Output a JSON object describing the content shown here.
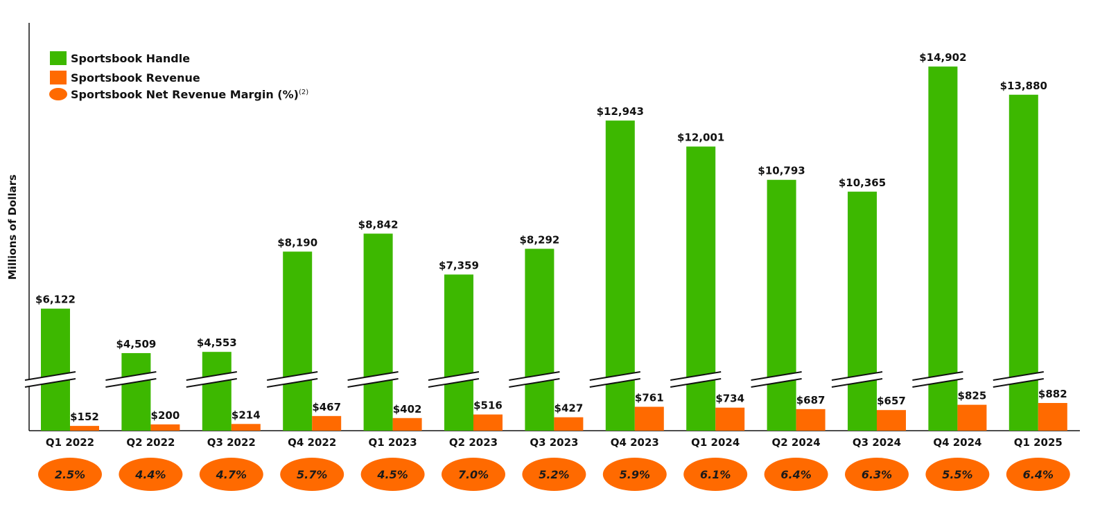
{
  "chart_data": {
    "type": "bar",
    "ylabel": "Millions of Dollars",
    "axis_break": true,
    "grid": false,
    "legend_position": "top-left",
    "categories": [
      "Q1 2022",
      "Q2 2022",
      "Q3 2022",
      "Q4 2022",
      "Q1 2023",
      "Q2 2023",
      "Q3 2023",
      "Q4 2023",
      "Q1 2024",
      "Q2 2024",
      "Q3 2024",
      "Q4 2024",
      "Q1 2025"
    ],
    "series": [
      {
        "name": "Sportsbook Handle",
        "color": "#3db800",
        "values": [
          6122,
          4509,
          4553,
          8190,
          8842,
          7359,
          8292,
          12943,
          12001,
          10793,
          10365,
          14902,
          13880
        ],
        "labels": [
          "$6,122",
          "$4,509",
          "$4,553",
          "$8,190",
          "$8,842",
          "$7,359",
          "$8,292",
          "$12,943",
          "$12,001",
          "$10,793",
          "$10,365",
          "$14,902",
          "$13,880"
        ]
      },
      {
        "name": "Sportsbook Revenue",
        "color": "#ff6a00",
        "values": [
          152,
          200,
          214,
          467,
          402,
          516,
          427,
          761,
          734,
          687,
          657,
          825,
          882
        ],
        "labels": [
          "$152",
          "$200",
          "$214",
          "$467",
          "$402",
          "$516",
          "$427",
          "$761",
          "$734",
          "$687",
          "$657",
          "$825",
          "$882"
        ]
      },
      {
        "name": "Sportsbook Net Revenue Margin (%)",
        "name_superscript": "(2)",
        "color": "#ff6a00",
        "values": [
          2.5,
          4.4,
          4.7,
          5.7,
          4.5,
          7.0,
          5.2,
          5.9,
          6.1,
          6.4,
          6.3,
          5.5,
          6.4
        ],
        "labels": [
          "2.5%",
          "4.4%",
          "4.7%",
          "5.7%",
          "4.5%",
          "7.0%",
          "5.2%",
          "5.9%",
          "6.1%",
          "6.4%",
          "6.3%",
          "5.5%",
          "6.4%"
        ]
      }
    ]
  }
}
